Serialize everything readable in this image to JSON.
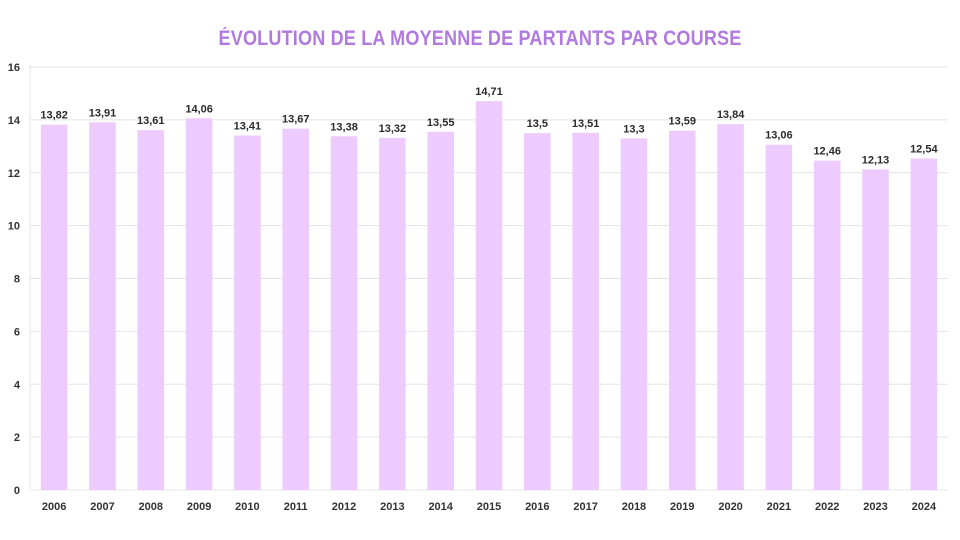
{
  "chart_data": {
    "type": "bar",
    "title": "ÉVOLUTION DE LA MOYENNE DE PARTANTS PAR COURSE",
    "categories": [
      "2006",
      "2007",
      "2008",
      "2009",
      "2010",
      "2011",
      "2012",
      "2013",
      "2014",
      "2015",
      "2016",
      "2017",
      "2018",
      "2019",
      "2020",
      "2021",
      "2022",
      "2023",
      "2024"
    ],
    "values": [
      13.82,
      13.91,
      13.61,
      14.06,
      13.41,
      13.67,
      13.38,
      13.32,
      13.55,
      14.71,
      13.5,
      13.51,
      13.3,
      13.59,
      13.84,
      13.06,
      12.46,
      12.13,
      12.54
    ],
    "data_labels": [
      "13,82",
      "13,91",
      "13,61",
      "14,06",
      "13,41",
      "13,67",
      "13,38",
      "13,32",
      "13,55",
      "14,71",
      "13,5",
      "13,51",
      "13,3",
      "13,59",
      "13,84",
      "13,06",
      "12,46",
      "12,13",
      "12,54"
    ],
    "ylim": [
      0,
      16
    ],
    "yticks": [
      0,
      2,
      4,
      6,
      8,
      10,
      12,
      14,
      16
    ],
    "xlabel": "",
    "ylabel": "",
    "grid": true,
    "legend": "none",
    "colors": {
      "bar": "#eecbff",
      "title": "#b07adf",
      "grid": "#e4e4e4"
    }
  }
}
